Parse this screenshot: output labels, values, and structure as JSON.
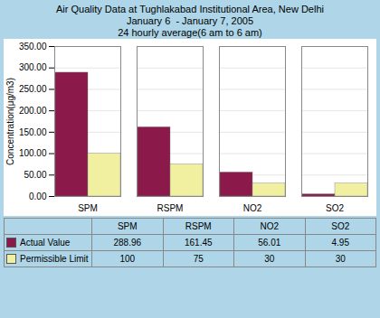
{
  "chart_data": {
    "type": "bar",
    "title": "Air Quality Data at Tughlakabad Institutional Area, New Delhi\nJanuary 6  - January 7, 2005\n24 hourly average(6 am to 6 am)",
    "ylabel": "Concentration(μg/m3)",
    "categories": [
      "SPM",
      "RSPM",
      "NO2",
      "SO2"
    ],
    "series": [
      {
        "name": "Actual Value",
        "color": "#8B1A4A",
        "values": [
          288.96,
          161.45,
          56.01,
          4.95
        ]
      },
      {
        "name": "Permissible Limit",
        "color": "#F0F0A0",
        "values": [
          100,
          75,
          30,
          30
        ]
      }
    ],
    "ylim": [
      0,
      350
    ],
    "yticks": [
      {
        "value": 0,
        "label": "0.00"
      },
      {
        "value": 50,
        "label": "50.00"
      },
      {
        "value": 100,
        "label": "100.00"
      },
      {
        "value": 150,
        "label": "150.00"
      },
      {
        "value": 200,
        "label": "200.00"
      },
      {
        "value": 250,
        "label": "250.00"
      },
      {
        "value": 300,
        "label": "300.00"
      },
      {
        "value": 350,
        "label": "350.00"
      }
    ],
    "grid": true,
    "legend": "bottom"
  }
}
